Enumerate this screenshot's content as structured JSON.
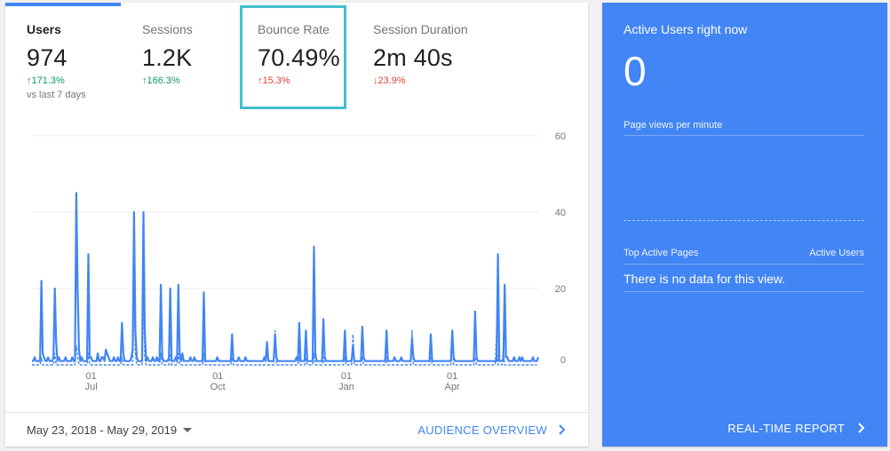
{
  "metrics": [
    {
      "label": "Users",
      "value": "974",
      "delta": "171.3%",
      "direction": "up",
      "sub": "vs last 7 days"
    },
    {
      "label": "Sessions",
      "value": "1.2K",
      "delta": "166.3%",
      "direction": "up"
    },
    {
      "label": "Bounce Rate",
      "value": "70.49%",
      "delta": "15.3%",
      "direction": "up"
    },
    {
      "label": "Session Duration",
      "value": "2m 40s",
      "delta": "23.9%",
      "direction": "down"
    }
  ],
  "colors": {
    "accent": "#4285f4",
    "positive": "#0f9d58",
    "negative": "#db4437",
    "highlight": "#41c0cc",
    "grid": "#eeeeee"
  },
  "footer": {
    "date_range": "May 23, 2018 - May 29, 2019",
    "audience_link": "AUDIENCE OVERVIEW"
  },
  "chart_data": {
    "type": "line",
    "ylim": [
      0,
      60
    ],
    "y_ticks": [
      "60",
      "40",
      "20",
      "0"
    ],
    "x_ticks": [
      {
        "day": "01",
        "month": "Jul"
      },
      {
        "day": "01",
        "month": "Oct"
      },
      {
        "day": "01",
        "month": "Jan"
      },
      {
        "day": "01",
        "month": "Apr"
      }
    ],
    "grid": true,
    "series": [
      {
        "style": "solid",
        "values": [
          1,
          1,
          2,
          1,
          1,
          1,
          1,
          22,
          3,
          2,
          1,
          1,
          2,
          1,
          1,
          1,
          2,
          20,
          6,
          1,
          2,
          1,
          1,
          1,
          1,
          2,
          1,
          1,
          1,
          1,
          2,
          1,
          1,
          45,
          20,
          4,
          1,
          2,
          1,
          1,
          1,
          1,
          29,
          2,
          2,
          1,
          1,
          1,
          1,
          3,
          1,
          1,
          2,
          2,
          1,
          4,
          3,
          2,
          1,
          1,
          1,
          2,
          1,
          1,
          2,
          1,
          1,
          11,
          3,
          1,
          1,
          1,
          1,
          1,
          2,
          4,
          40,
          9,
          2,
          1,
          1,
          1,
          1,
          40,
          9,
          1,
          2,
          1,
          1,
          1,
          2,
          1,
          1,
          2,
          1,
          1,
          21,
          2,
          1,
          1,
          1,
          1,
          2,
          20,
          1,
          1,
          1,
          2,
          1,
          21,
          3,
          1,
          3,
          1,
          1,
          1,
          1,
          1,
          2,
          1,
          1,
          2,
          1,
          1,
          1,
          1,
          1,
          1,
          19,
          1,
          1,
          1,
          1,
          1,
          1,
          1,
          1,
          1,
          2,
          1,
          1,
          1,
          1,
          1,
          1,
          1,
          1,
          1,
          1,
          8,
          1,
          1,
          1,
          1,
          2,
          1,
          1,
          1,
          1,
          2,
          1,
          1,
          1,
          1,
          1,
          1,
          1,
          1,
          1,
          1,
          1,
          1,
          1,
          2,
          1,
          6,
          1,
          1,
          1,
          1,
          1,
          8,
          2,
          1,
          1,
          1,
          1,
          1,
          1,
          1,
          1,
          1,
          1,
          1,
          1,
          1,
          1,
          2,
          1,
          11,
          1,
          1,
          1,
          1,
          9,
          1,
          1,
          1,
          1,
          1,
          31,
          3,
          1,
          1,
          1,
          1,
          1,
          12,
          2,
          1,
          1,
          1,
          1,
          1,
          1,
          1,
          1,
          1,
          1,
          1,
          1,
          1,
          1,
          9,
          1,
          1,
          1,
          1,
          1,
          5,
          1,
          1,
          1,
          1,
          1,
          1,
          10,
          2,
          1,
          1,
          1,
          1,
          1,
          1,
          1,
          1,
          1,
          1,
          1,
          1,
          1,
          1,
          1,
          1,
          9,
          1,
          1,
          1,
          1,
          1,
          2,
          1,
          1,
          1,
          1,
          2,
          1,
          1,
          1,
          1,
          1,
          1,
          1,
          7,
          2,
          1,
          1,
          1,
          1,
          1,
          1,
          1,
          1,
          1,
          1,
          1,
          1,
          8,
          1,
          1,
          1,
          1,
          1,
          1,
          1,
          1,
          1,
          1,
          1,
          1,
          1,
          1,
          1,
          9,
          2,
          1,
          1,
          1,
          1,
          1,
          1,
          1,
          1,
          1,
          1,
          1,
          1,
          1,
          1,
          1,
          14,
          2,
          1,
          1,
          1,
          1,
          1,
          1,
          1,
          1,
          1,
          1,
          1,
          1,
          1,
          1,
          1,
          29,
          1,
          1,
          1,
          1,
          21,
          2,
          2,
          1,
          1,
          1,
          1,
          2,
          1,
          1,
          1,
          2,
          1,
          2,
          1,
          1,
          1,
          1,
          1,
          1,
          1,
          2,
          1,
          1,
          1,
          2
        ]
      },
      {
        "style": "dashed",
        "values": [
          0,
          0,
          0,
          0,
          0,
          0,
          0,
          2,
          0,
          0,
          0,
          0,
          0,
          0,
          0,
          0,
          0,
          3,
          0,
          0,
          0,
          0,
          0,
          0,
          0,
          0,
          0,
          0,
          0,
          0,
          0,
          0,
          0,
          5,
          2,
          0,
          0,
          0,
          0,
          0,
          0,
          0,
          3,
          0,
          0,
          0,
          0,
          0,
          0,
          0,
          0,
          0,
          0,
          0,
          0,
          0,
          0,
          0,
          0,
          0,
          0,
          0,
          0,
          0,
          0,
          0,
          0,
          2,
          0,
          0,
          0,
          0,
          0,
          0,
          0,
          0,
          20,
          3,
          0,
          0,
          0,
          0,
          0,
          20,
          2,
          0,
          0,
          0,
          0,
          0,
          0,
          0,
          0,
          0,
          0,
          0,
          3,
          0,
          0,
          0,
          0,
          0,
          0,
          3,
          0,
          0,
          0,
          0,
          0,
          3,
          0,
          0,
          0,
          0,
          0,
          0,
          0,
          0,
          0,
          0,
          0,
          0,
          0,
          0,
          0,
          0,
          0,
          0,
          3,
          0,
          0,
          0,
          0,
          0,
          0,
          0,
          0,
          0,
          0,
          0,
          0,
          0,
          0,
          0,
          0,
          0,
          0,
          0,
          0,
          2,
          0,
          0,
          0,
          0,
          0,
          0,
          0,
          0,
          0,
          0,
          0,
          0,
          0,
          0,
          0,
          0,
          0,
          0,
          0,
          0,
          0,
          0,
          0,
          0,
          0,
          0,
          0,
          0,
          0,
          0,
          0,
          9,
          0,
          0,
          0,
          0,
          0,
          0,
          0,
          0,
          0,
          0,
          0,
          0,
          0,
          0,
          0,
          0,
          0,
          2,
          0,
          0,
          0,
          0,
          2,
          0,
          0,
          0,
          0,
          0,
          3,
          0,
          0,
          0,
          0,
          0,
          0,
          2,
          0,
          0,
          0,
          0,
          0,
          0,
          0,
          0,
          0,
          0,
          0,
          0,
          0,
          0,
          0,
          2,
          0,
          0,
          0,
          0,
          0,
          8,
          0,
          0,
          0,
          0,
          0,
          0,
          2,
          0,
          0,
          0,
          0,
          0,
          0,
          0,
          0,
          0,
          0,
          0,
          0,
          0,
          0,
          0,
          0,
          0,
          2,
          0,
          0,
          0,
          0,
          0,
          0,
          0,
          0,
          0,
          0,
          0,
          0,
          0,
          0,
          0,
          0,
          0,
          0,
          9,
          0,
          0,
          0,
          0,
          0,
          0,
          0,
          0,
          0,
          0,
          0,
          0,
          0,
          2,
          0,
          0,
          0,
          0,
          0,
          0,
          0,
          0,
          0,
          0,
          0,
          0,
          0,
          0,
          0,
          9,
          0,
          0,
          0,
          0,
          0,
          0,
          0,
          0,
          0,
          0,
          0,
          0,
          0,
          0,
          0,
          0,
          2,
          0,
          0,
          0,
          0,
          0,
          0,
          0,
          0,
          0,
          0,
          0,
          0,
          0,
          0,
          0,
          9,
          0,
          0,
          0,
          0,
          4,
          0,
          0,
          0,
          0,
          0,
          0,
          0,
          0,
          0,
          0,
          0,
          0,
          0,
          0,
          0,
          0,
          0,
          0,
          0,
          0,
          0,
          0,
          0,
          0,
          0
        ]
      }
    ]
  },
  "realtime": {
    "title": "Active Users right now",
    "count": "0",
    "pageviews_label": "Page views per minute",
    "top_pages_label": "Top Active Pages",
    "active_users_label": "Active Users",
    "no_data": "There is no data for this view.",
    "report_link": "REAL-TIME REPORT"
  }
}
